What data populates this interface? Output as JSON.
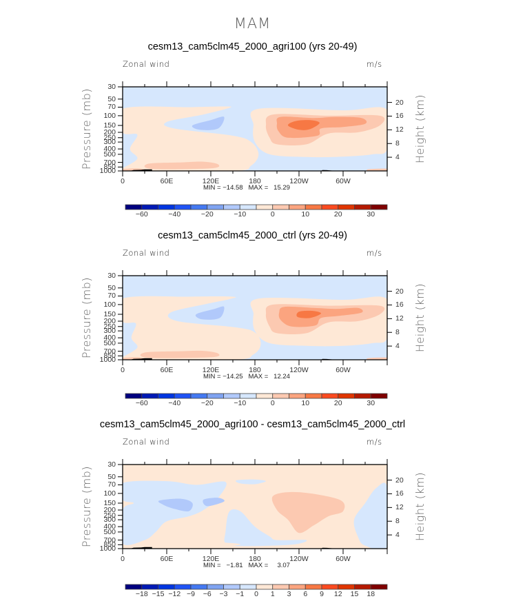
{
  "page": {
    "title": "MAM"
  },
  "palette": {
    "colors": [
      "#00007f",
      "#0019b5",
      "#0035e0",
      "#1f53f5",
      "#4479f2",
      "#7fa3f1",
      "#b1c9fb",
      "#d6e7fd",
      "#fee8d6",
      "#fcc9b1",
      "#fba47f",
      "#f77844",
      "#fb4a1f",
      "#e03500",
      "#b51900",
      "#7f0000"
    ]
  },
  "chart_data": [
    {
      "type": "heatmap",
      "subtype": "filled-contour",
      "title": "cesm13_cam5clm45_2000_agri100 (yrs 20-49)",
      "left_label": "Zonal wind",
      "right_label": "m/s",
      "xlabel": "",
      "ylabel": "Pressure (mb)",
      "ylabel_right": "Height (km)",
      "x_ticks": [
        "0",
        "60E",
        "120E",
        "180",
        "120W",
        "60W"
      ],
      "y_ticks": [
        "30",
        "50",
        "70",
        "100",
        "150",
        "200",
        "250",
        "300",
        "400",
        "500",
        "700",
        "850",
        "1000"
      ],
      "y_ticks_right": [
        "20",
        "16",
        "12",
        "8",
        "4"
      ],
      "xlim": [
        0,
        360
      ],
      "ylim_mb": [
        1000,
        30
      ],
      "min": -14.58,
      "max": 15.29,
      "minmax_text": "MIN = −14.58   MAX =   15.29",
      "colorbar": {
        "levels": [
          -70,
          -60,
          -50,
          -40,
          -30,
          -20,
          -15,
          -10,
          -5,
          0,
          5,
          10,
          15,
          20,
          25,
          30
        ],
        "labels": [
          "−60",
          "−40",
          "−20",
          "−10",
          "0",
          "10",
          "20",
          "30"
        ]
      },
      "features": [
        {
          "desc": "westerly jet core maximum",
          "lon": 215,
          "p": 150,
          "value_range": "10-15"
        },
        {
          "desc": "easterly minimum",
          "lon": 115,
          "p": 150,
          "value_range": "-10 to -5"
        }
      ]
    },
    {
      "type": "heatmap",
      "subtype": "filled-contour",
      "title": "cesm13_cam5clm45_2000_ctrl (yrs 20-49)",
      "left_label": "Zonal wind",
      "right_label": "m/s",
      "xlabel": "",
      "ylabel": "Pressure (mb)",
      "ylabel_right": "Height (km)",
      "x_ticks": [
        "0",
        "60E",
        "120E",
        "180",
        "120W",
        "60W"
      ],
      "y_ticks": [
        "30",
        "50",
        "70",
        "100",
        "150",
        "200",
        "250",
        "300",
        "400",
        "500",
        "700",
        "850",
        "1000"
      ],
      "y_ticks_right": [
        "20",
        "16",
        "12",
        "8",
        "4"
      ],
      "xlim": [
        0,
        360
      ],
      "ylim_mb": [
        1000,
        30
      ],
      "min": -14.25,
      "max": 12.24,
      "minmax_text": "MIN = −14.25   MAX =   12.24",
      "colorbar": {
        "levels": [
          -70,
          -60,
          -50,
          -40,
          -30,
          -20,
          -15,
          -10,
          -5,
          0,
          5,
          10,
          15,
          20,
          25,
          30
        ],
        "labels": [
          "−60",
          "−40",
          "−20",
          "−10",
          "0",
          "10",
          "20",
          "30"
        ]
      },
      "features": [
        {
          "desc": "westerly jet core maximum",
          "lon": 215,
          "p": 150,
          "value_range": "10-15"
        },
        {
          "desc": "easterly minimum",
          "lon": 115,
          "p": 150,
          "value_range": "-10 to -5"
        }
      ]
    },
    {
      "type": "heatmap",
      "subtype": "filled-contour",
      "title": "cesm13_cam5clm45_2000_agri100 - cesm13_cam5clm45_2000_ctrl",
      "left_label": "Zonal wind",
      "right_label": "m/s",
      "xlabel": "",
      "ylabel": "Pressure (mb)",
      "ylabel_right": "Height (km)",
      "x_ticks": [
        "0",
        "60E",
        "120E",
        "180",
        "120W",
        "60W"
      ],
      "y_ticks": [
        "30",
        "50",
        "70",
        "100",
        "150",
        "200",
        "250",
        "300",
        "400",
        "500",
        "700",
        "850",
        "1000"
      ],
      "y_ticks_right": [
        "20",
        "16",
        "12",
        "8",
        "4"
      ],
      "xlim": [
        0,
        360
      ],
      "ylim_mb": [
        1000,
        30
      ],
      "min": -1.81,
      "max": 3.07,
      "minmax_text": "MIN =   −1.81   MAX =     3.07",
      "colorbar": {
        "levels": [
          -21,
          -18,
          -15,
          -12,
          -9,
          -6,
          -3,
          -1,
          0,
          1,
          3,
          6,
          9,
          12,
          15,
          18
        ],
        "labels": [
          "−18",
          "−15",
          "−12",
          "−9",
          "−6",
          "−3",
          "−1",
          "0",
          "1",
          "3",
          "6",
          "9",
          "12",
          "15",
          "18"
        ]
      },
      "features": [
        {
          "desc": "positive anomaly",
          "lon": 220,
          "p": 150,
          "value_range": "1-3"
        },
        {
          "desc": "negative anomaly",
          "lon": 60,
          "p": 120,
          "value_range": "-3 to -1"
        }
      ]
    }
  ]
}
